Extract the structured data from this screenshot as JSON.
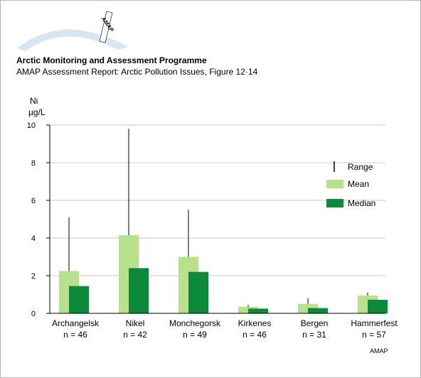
{
  "header": {
    "logo_text": "AMAP",
    "org_title": "Arctic Monitoring and Assessment Programme",
    "report_title": "AMAP Assessment Report: Arctic Pollution Issues, Figure 12·14"
  },
  "footer": {
    "credit": "AMAP"
  },
  "colors": {
    "mean": "#b9e08a",
    "median": "#0a8a3a",
    "range": "#000000",
    "grid": "#c8c8c8",
    "logo_arc": "#d6e6f2"
  },
  "chart_data": {
    "type": "bar",
    "ylabel_line1": "Ni",
    "ylabel_line2": "µg/L",
    "ylim": [
      0,
      10
    ],
    "yticks": [
      "0",
      "2",
      "4",
      "6",
      "8",
      "10"
    ],
    "grid": true,
    "legend_position": "right",
    "categories": [
      "Archangelsk",
      "Nikel",
      "Monchegorsk",
      "Kirkenes",
      "Bergen",
      "Hammerfest"
    ],
    "sample_sizes": [
      "n = 46",
      "n = 42",
      "n = 49",
      "n = 46",
      "n = 31",
      "n = 57"
    ],
    "series": [
      {
        "name": "Mean",
        "values": [
          2.25,
          4.15,
          3.0,
          0.35,
          0.5,
          0.95
        ]
      },
      {
        "name": "Median",
        "values": [
          1.45,
          2.4,
          2.2,
          0.25,
          0.28,
          0.72
        ]
      }
    ],
    "range_max": [
      5.1,
      9.8,
      5.5,
      0.45,
      0.8,
      1.1
    ],
    "legend": {
      "range_label": "Range",
      "mean_label": "Mean",
      "median_label": "Median"
    }
  }
}
